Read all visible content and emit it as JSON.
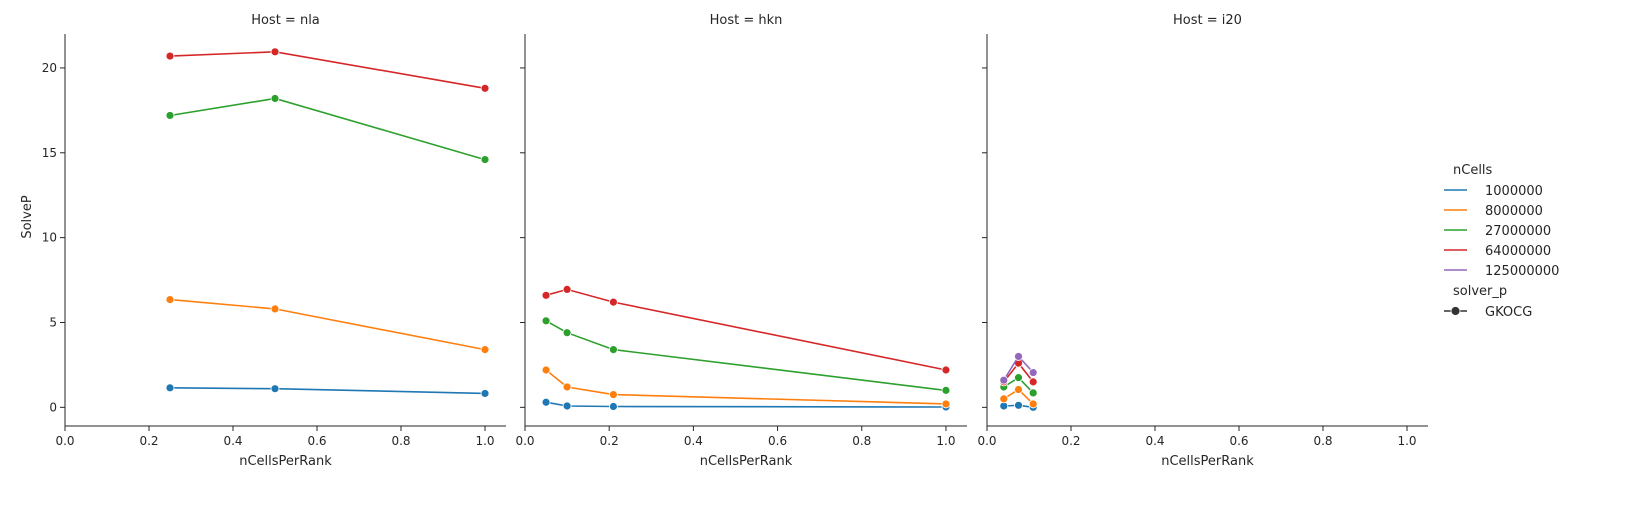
{
  "figure": {
    "ylabel": "SolveP",
    "xlabel": "nCellsPerRank"
  },
  "legend": {
    "hue_title": "nCells",
    "style_title": "solver_p",
    "style_entry": "GKOCG"
  },
  "colors": {
    "1000000": "#1f77b4",
    "8000000": "#ff7f0e",
    "27000000": "#2ca02c",
    "64000000": "#d62728",
    "125000000": "#9467bd"
  },
  "chart_data": [
    {
      "type": "line",
      "title": "Host = nla",
      "xlabel": "nCellsPerRank",
      "ylabel": "SolveP",
      "xlim": [
        0.0,
        1.05
      ],
      "ylim": [
        -1.1,
        22.0
      ],
      "xticks": [
        "0.0",
        "0.2",
        "0.4",
        "0.6",
        "0.8",
        "1.0"
      ],
      "yticks": [
        "0",
        "5",
        "10",
        "15",
        "20"
      ],
      "series": [
        {
          "name": "1000000",
          "x": [
            0.25,
            0.5,
            1.0
          ],
          "y": [
            1.15,
            1.1,
            0.82
          ]
        },
        {
          "name": "8000000",
          "x": [
            0.25,
            0.5,
            1.0
          ],
          "y": [
            6.35,
            5.8,
            3.4
          ]
        },
        {
          "name": "27000000",
          "x": [
            0.25,
            0.5,
            1.0
          ],
          "y": [
            17.2,
            18.2,
            14.6
          ]
        },
        {
          "name": "64000000",
          "x": [
            0.25,
            0.5,
            1.0
          ],
          "y": [
            20.7,
            20.95,
            18.8
          ]
        }
      ]
    },
    {
      "type": "line",
      "title": "Host = hkn",
      "xlabel": "nCellsPerRank",
      "ylabel": "",
      "xlim": [
        0.0,
        1.05
      ],
      "ylim": [
        -1.1,
        22.0
      ],
      "xticks": [
        "0.0",
        "0.2",
        "0.4",
        "0.6",
        "0.8",
        "1.0"
      ],
      "yticks": [],
      "series": [
        {
          "name": "1000000",
          "x": [
            0.05,
            0.1,
            0.21,
            1.0
          ],
          "y": [
            0.3,
            0.08,
            0.05,
            0.02
          ]
        },
        {
          "name": "8000000",
          "x": [
            0.05,
            0.1,
            0.21,
            1.0
          ],
          "y": [
            2.2,
            1.2,
            0.75,
            0.2
          ]
        },
        {
          "name": "27000000",
          "x": [
            0.05,
            0.1,
            0.21,
            1.0
          ],
          "y": [
            5.1,
            4.4,
            3.4,
            1.0
          ]
        },
        {
          "name": "64000000",
          "x": [
            0.05,
            0.1,
            0.21,
            1.0
          ],
          "y": [
            6.6,
            6.95,
            6.2,
            2.2
          ]
        }
      ]
    },
    {
      "type": "line",
      "title": "Host = i20",
      "xlabel": "nCellsPerRank",
      "ylabel": "",
      "xlim": [
        0.0,
        1.05
      ],
      "ylim": [
        -1.1,
        22.0
      ],
      "xticks": [
        "0.0",
        "0.2",
        "0.4",
        "0.6",
        "0.8",
        "1.0"
      ],
      "yticks": [],
      "series": [
        {
          "name": "1000000",
          "x": [
            0.04,
            0.075,
            0.11
          ],
          "y": [
            0.08,
            0.12,
            0.0
          ]
        },
        {
          "name": "8000000",
          "x": [
            0.04,
            0.075,
            0.11
          ],
          "y": [
            0.5,
            1.05,
            0.2
          ]
        },
        {
          "name": "27000000",
          "x": [
            0.04,
            0.075,
            0.11
          ],
          "y": [
            1.2,
            1.75,
            0.85
          ]
        },
        {
          "name": "64000000",
          "x": [
            0.04,
            0.075,
            0.11
          ],
          "y": [
            1.5,
            2.6,
            1.5
          ]
        },
        {
          "name": "125000000",
          "x": [
            0.04,
            0.075,
            0.11
          ],
          "y": [
            1.6,
            3.0,
            2.05
          ]
        }
      ]
    }
  ]
}
